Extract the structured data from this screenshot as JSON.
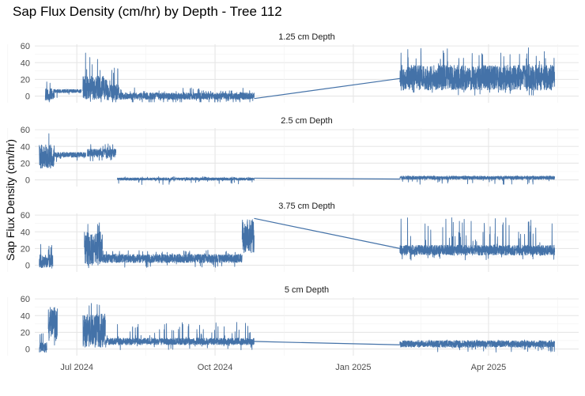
{
  "chart_data": {
    "type": "line",
    "title": "Sap Flux Density (cm/hr) by Depth - Tree 112",
    "xlabel": "",
    "ylabel": "Sap Flux Density (cm/hr)",
    "x_ticks": [
      "Jul 2024",
      "Oct 2024",
      "Jan 2025",
      "Apr 2025"
    ],
    "x_tick_dates": [
      "2024-07-01",
      "2024-10-01",
      "2025-01-01",
      "2025-04-01"
    ],
    "xlim": [
      "2024-06-03",
      "2025-05-31"
    ],
    "y_ticks": [
      0,
      20,
      40,
      60
    ],
    "grid": true,
    "legend": "none",
    "line_color": "#4472a8",
    "panels": [
      {
        "label": "1.25 cm Depth",
        "ylim": [
          -8,
          62
        ],
        "segments": [
          {
            "start": "2024-06-10",
            "end": "2024-06-16",
            "base": 2,
            "spread": 7,
            "spikes": 18
          },
          {
            "start": "2024-06-16",
            "end": "2024-07-04",
            "base": 6,
            "spread": 2,
            "spikes": 0
          },
          {
            "start": "2024-07-05",
            "end": "2024-07-21",
            "base": 10,
            "spread": 14,
            "spikes": 54
          },
          {
            "start": "2024-07-21",
            "end": "2024-07-29",
            "base": 4,
            "spread": 9,
            "spikes": 43
          },
          {
            "start": "2024-07-29",
            "end": "2024-10-27",
            "base": 0,
            "spread": 4,
            "spikes": 10
          },
          {
            "start": "2025-02-01",
            "end": "2025-05-15",
            "base": 22,
            "spread": 15,
            "spikes": 58
          }
        ],
        "connectors": [
          {
            "from": [
              "2024-10-27",
              -3
            ],
            "to": [
              "2025-02-01",
              21
            ]
          }
        ]
      },
      {
        "label": "2.5 cm Depth",
        "ylim": [
          -8,
          62
        ],
        "segments": [
          {
            "start": "2024-06-06",
            "end": "2024-06-16",
            "base": 28,
            "spread": 14,
            "spikes": 59
          },
          {
            "start": "2024-06-16",
            "end": "2024-07-07",
            "base": 30,
            "spread": 3,
            "spikes": 0
          },
          {
            "start": "2024-07-08",
            "end": "2024-07-27",
            "base": 32,
            "spread": 5,
            "spikes": 44
          },
          {
            "start": "2024-07-28",
            "end": "2024-10-27",
            "base": 1,
            "spread": 1.5,
            "spikes": 4
          },
          {
            "start": "2025-02-01",
            "end": "2025-05-15",
            "base": 2.5,
            "spread": 2,
            "spikes": 5
          }
        ],
        "connectors": [
          {
            "from": [
              "2024-10-27",
              2
            ],
            "to": [
              "2025-02-01",
              1
            ]
          }
        ]
      },
      {
        "label": "3.75 cm Depth",
        "ylim": [
          -8,
          62
        ],
        "segments": [
          {
            "start": "2024-06-06",
            "end": "2024-06-15",
            "base": 5,
            "spread": 8,
            "spikes": 32
          },
          {
            "start": "2024-07-06",
            "end": "2024-07-18",
            "base": 20,
            "spread": 20,
            "spikes": 56
          },
          {
            "start": "2024-07-18",
            "end": "2024-10-19",
            "base": 8,
            "spread": 5,
            "spikes": 18
          },
          {
            "start": "2024-10-19",
            "end": "2024-10-27",
            "base": 35,
            "spread": 20,
            "spikes": 60
          },
          {
            "start": "2025-02-01",
            "end": "2025-05-15",
            "base": 18,
            "spread": 6,
            "spikes": 57
          }
        ],
        "connectors": [
          {
            "from": [
              "2024-10-27",
              56
            ],
            "to": [
              "2025-02-01",
              20
            ]
          }
        ]
      },
      {
        "label": "5 cm Depth",
        "ylim": [
          -8,
          62
        ],
        "segments": [
          {
            "start": "2024-06-06",
            "end": "2024-06-11",
            "base": 2,
            "spread": 6,
            "spikes": 20
          },
          {
            "start": "2024-06-12",
            "end": "2024-06-18",
            "base": 30,
            "spread": 20,
            "spikes": 58
          },
          {
            "start": "2024-07-05",
            "end": "2024-07-20",
            "base": 22,
            "spread": 20,
            "spikes": 58
          },
          {
            "start": "2024-07-20",
            "end": "2024-10-27",
            "base": 9,
            "spread": 4,
            "spikes": 33
          },
          {
            "start": "2025-02-01",
            "end": "2025-05-15",
            "base": 6,
            "spread": 4,
            "spikes": 11
          }
        ],
        "connectors": [
          {
            "from": [
              "2024-10-27",
              9
            ],
            "to": [
              "2025-02-01",
              5
            ]
          }
        ]
      }
    ]
  }
}
